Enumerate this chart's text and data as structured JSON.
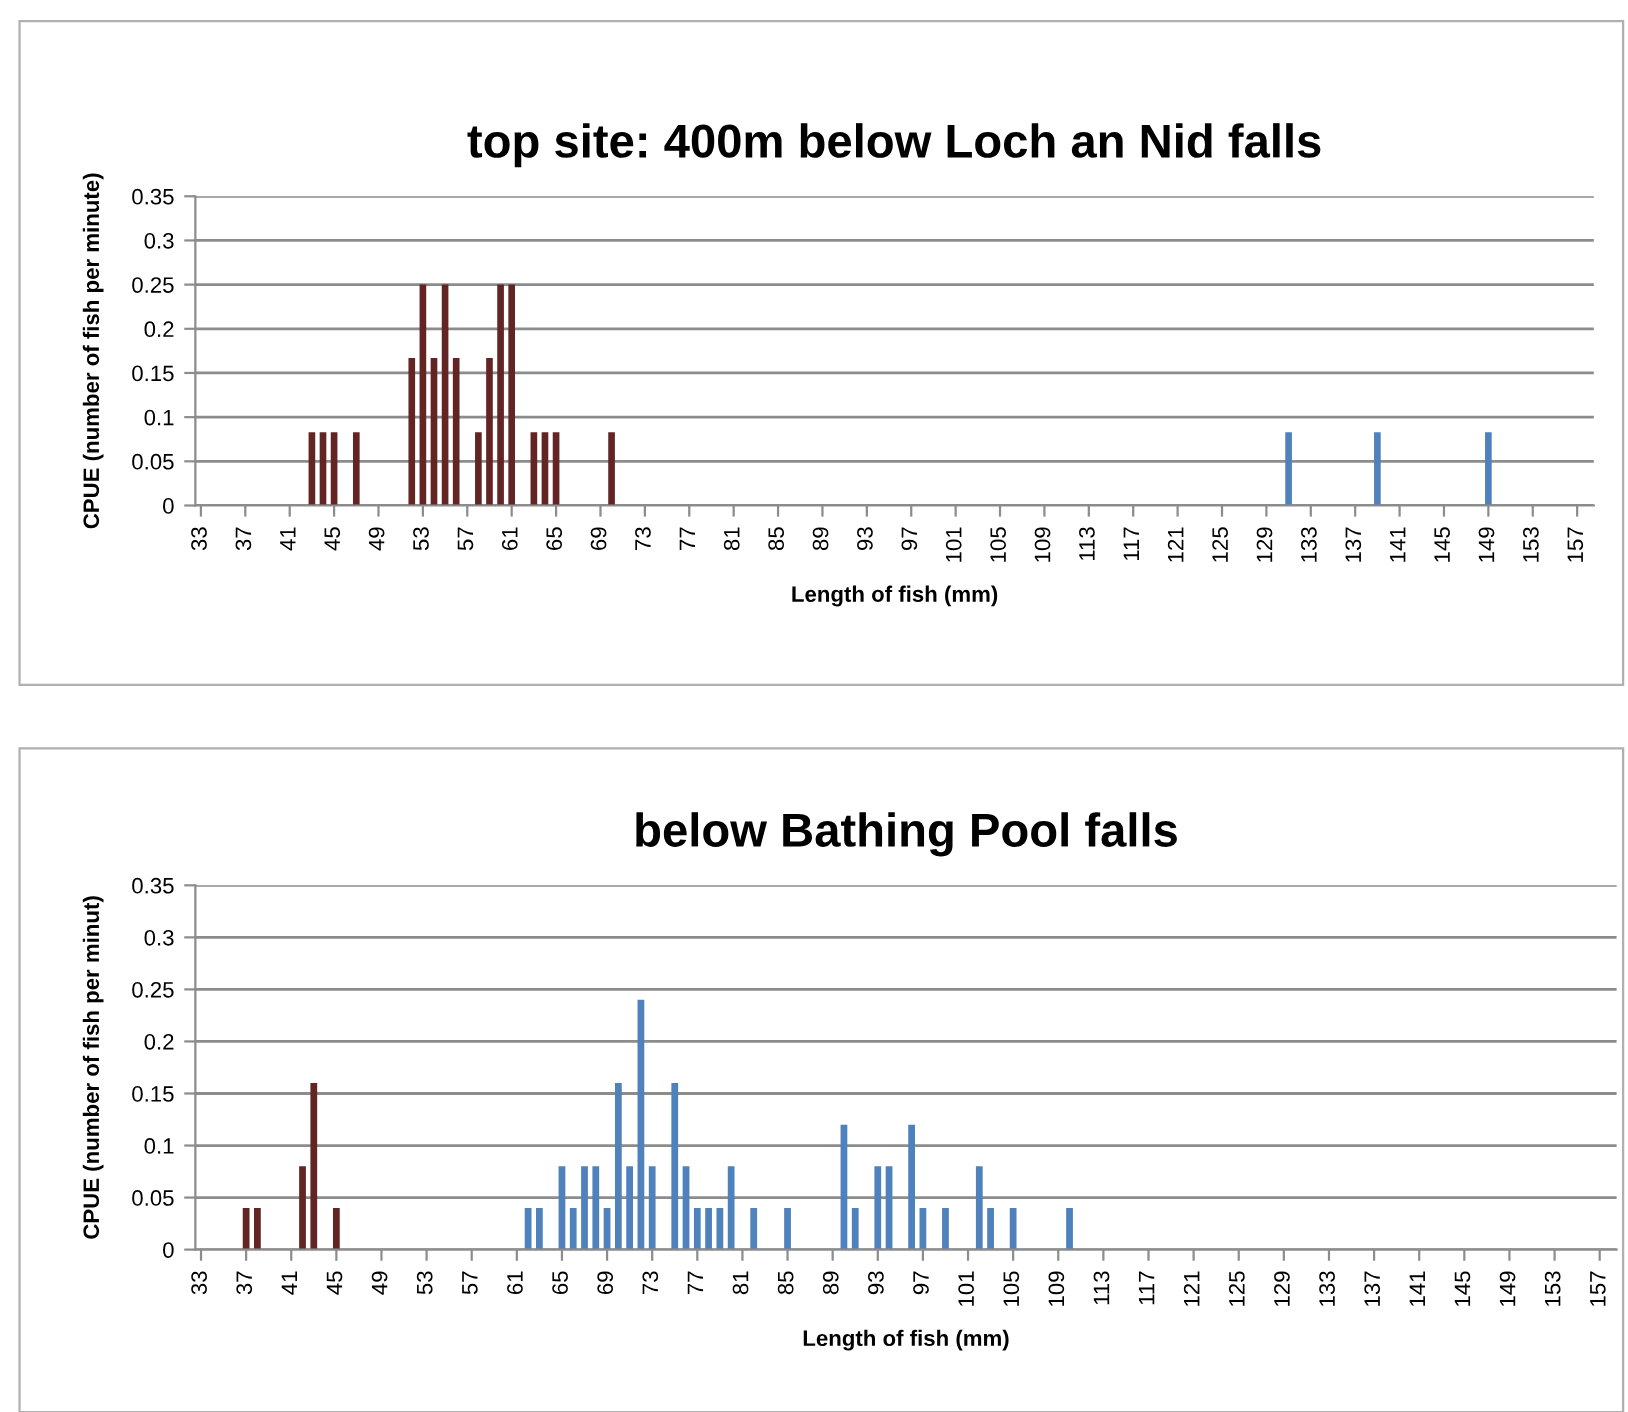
{
  "chart_data": [
    {
      "type": "bar",
      "title": "top site: 400m below Loch an Nid falls",
      "xlabel": "Length of fish (mm)",
      "ylabel": "CPUE (number of fish per minute)",
      "xlim": [
        32.5,
        158.5
      ],
      "xticks": [
        33,
        37,
        41,
        45,
        49,
        53,
        57,
        61,
        65,
        69,
        73,
        77,
        81,
        85,
        89,
        93,
        97,
        101,
        105,
        109,
        113,
        117,
        121,
        125,
        129,
        133,
        137,
        141,
        145,
        149,
        153,
        157
      ],
      "ylim": [
        0,
        0.35
      ],
      "yticks": [
        0,
        0.05,
        0.1,
        0.15,
        0.2,
        0.25,
        0.3,
        0.35
      ],
      "grid": "y",
      "legend": false,
      "series": [
        {
          "color": "#632523",
          "x": [
            43,
            44,
            45,
            47,
            52,
            53,
            54,
            55,
            56,
            58,
            59,
            60,
            61,
            63,
            64,
            65,
            70
          ],
          "values": [
            0.083,
            0.083,
            0.083,
            0.083,
            0.167,
            0.25,
            0.167,
            0.25,
            0.167,
            0.083,
            0.167,
            0.25,
            0.25,
            0.083,
            0.083,
            0.083,
            0.083
          ]
        },
        {
          "color": "#4f81bd",
          "x": [
            131,
            139,
            149
          ],
          "values": [
            0.083,
            0.083,
            0.083
          ]
        }
      ]
    },
    {
      "type": "bar",
      "title": "below Bathing Pool falls",
      "xlabel": "Length of fish (mm)",
      "ylabel": "CPUE (number of fish per minut)",
      "xlim": [
        32.5,
        158.5
      ],
      "xticks": [
        33,
        37,
        41,
        45,
        49,
        53,
        57,
        61,
        65,
        69,
        73,
        77,
        81,
        85,
        89,
        93,
        97,
        101,
        105,
        109,
        113,
        117,
        121,
        125,
        129,
        133,
        137,
        141,
        145,
        149,
        153,
        157
      ],
      "ylim": [
        0,
        0.35
      ],
      "yticks": [
        0,
        0.05,
        0.1,
        0.15,
        0.2,
        0.25,
        0.3,
        0.35
      ],
      "grid": "y",
      "legend": false,
      "series": [
        {
          "color": "#632523",
          "x": [
            37,
            38,
            42,
            43,
            45
          ],
          "values": [
            0.04,
            0.04,
            0.08,
            0.16,
            0.04
          ]
        },
        {
          "color": "#4f81bd",
          "x": [
            62,
            63,
            65,
            66,
            67,
            68,
            69,
            70,
            71,
            72,
            73,
            75,
            76,
            77,
            78,
            79,
            80,
            82,
            85,
            90,
            91,
            93,
            94,
            96,
            97,
            99,
            102,
            103,
            105,
            110
          ],
          "values": [
            0.04,
            0.04,
            0.08,
            0.04,
            0.08,
            0.08,
            0.04,
            0.16,
            0.08,
            0.24,
            0.08,
            0.16,
            0.08,
            0.04,
            0.04,
            0.04,
            0.08,
            0.04,
            0.04,
            0.12,
            0.04,
            0.08,
            0.08,
            0.12,
            0.04,
            0.04,
            0.08,
            0.04,
            0.04,
            0.04
          ]
        }
      ]
    }
  ]
}
